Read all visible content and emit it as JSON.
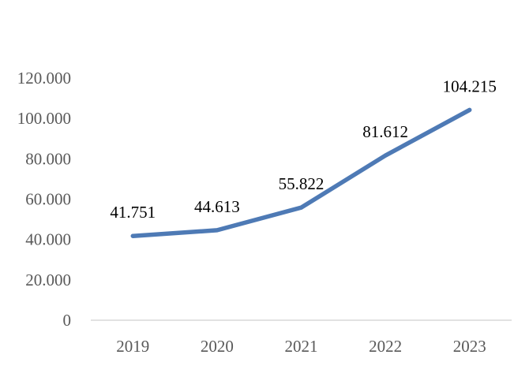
{
  "chart_data": {
    "type": "line",
    "categories": [
      "2019",
      "2020",
      "2021",
      "2022",
      "2023"
    ],
    "series": [
      {
        "values": [
          41751,
          44613,
          55822,
          81612,
          104215
        ],
        "value_labels": [
          "41.751",
          "44.613",
          "55.822",
          "81.612",
          "104.215"
        ],
        "color": "#4e7ab5"
      }
    ],
    "yticks": [
      0,
      20000,
      40000,
      60000,
      80000,
      100000,
      120000
    ],
    "ytick_labels": [
      "0",
      "20.000",
      "40.000",
      "60.000",
      "80.000",
      "100.000",
      "120.000"
    ],
    "ylim": [
      0,
      120000
    ],
    "grid": false,
    "legend": "none",
    "axis_color": "#d9d9d9"
  }
}
